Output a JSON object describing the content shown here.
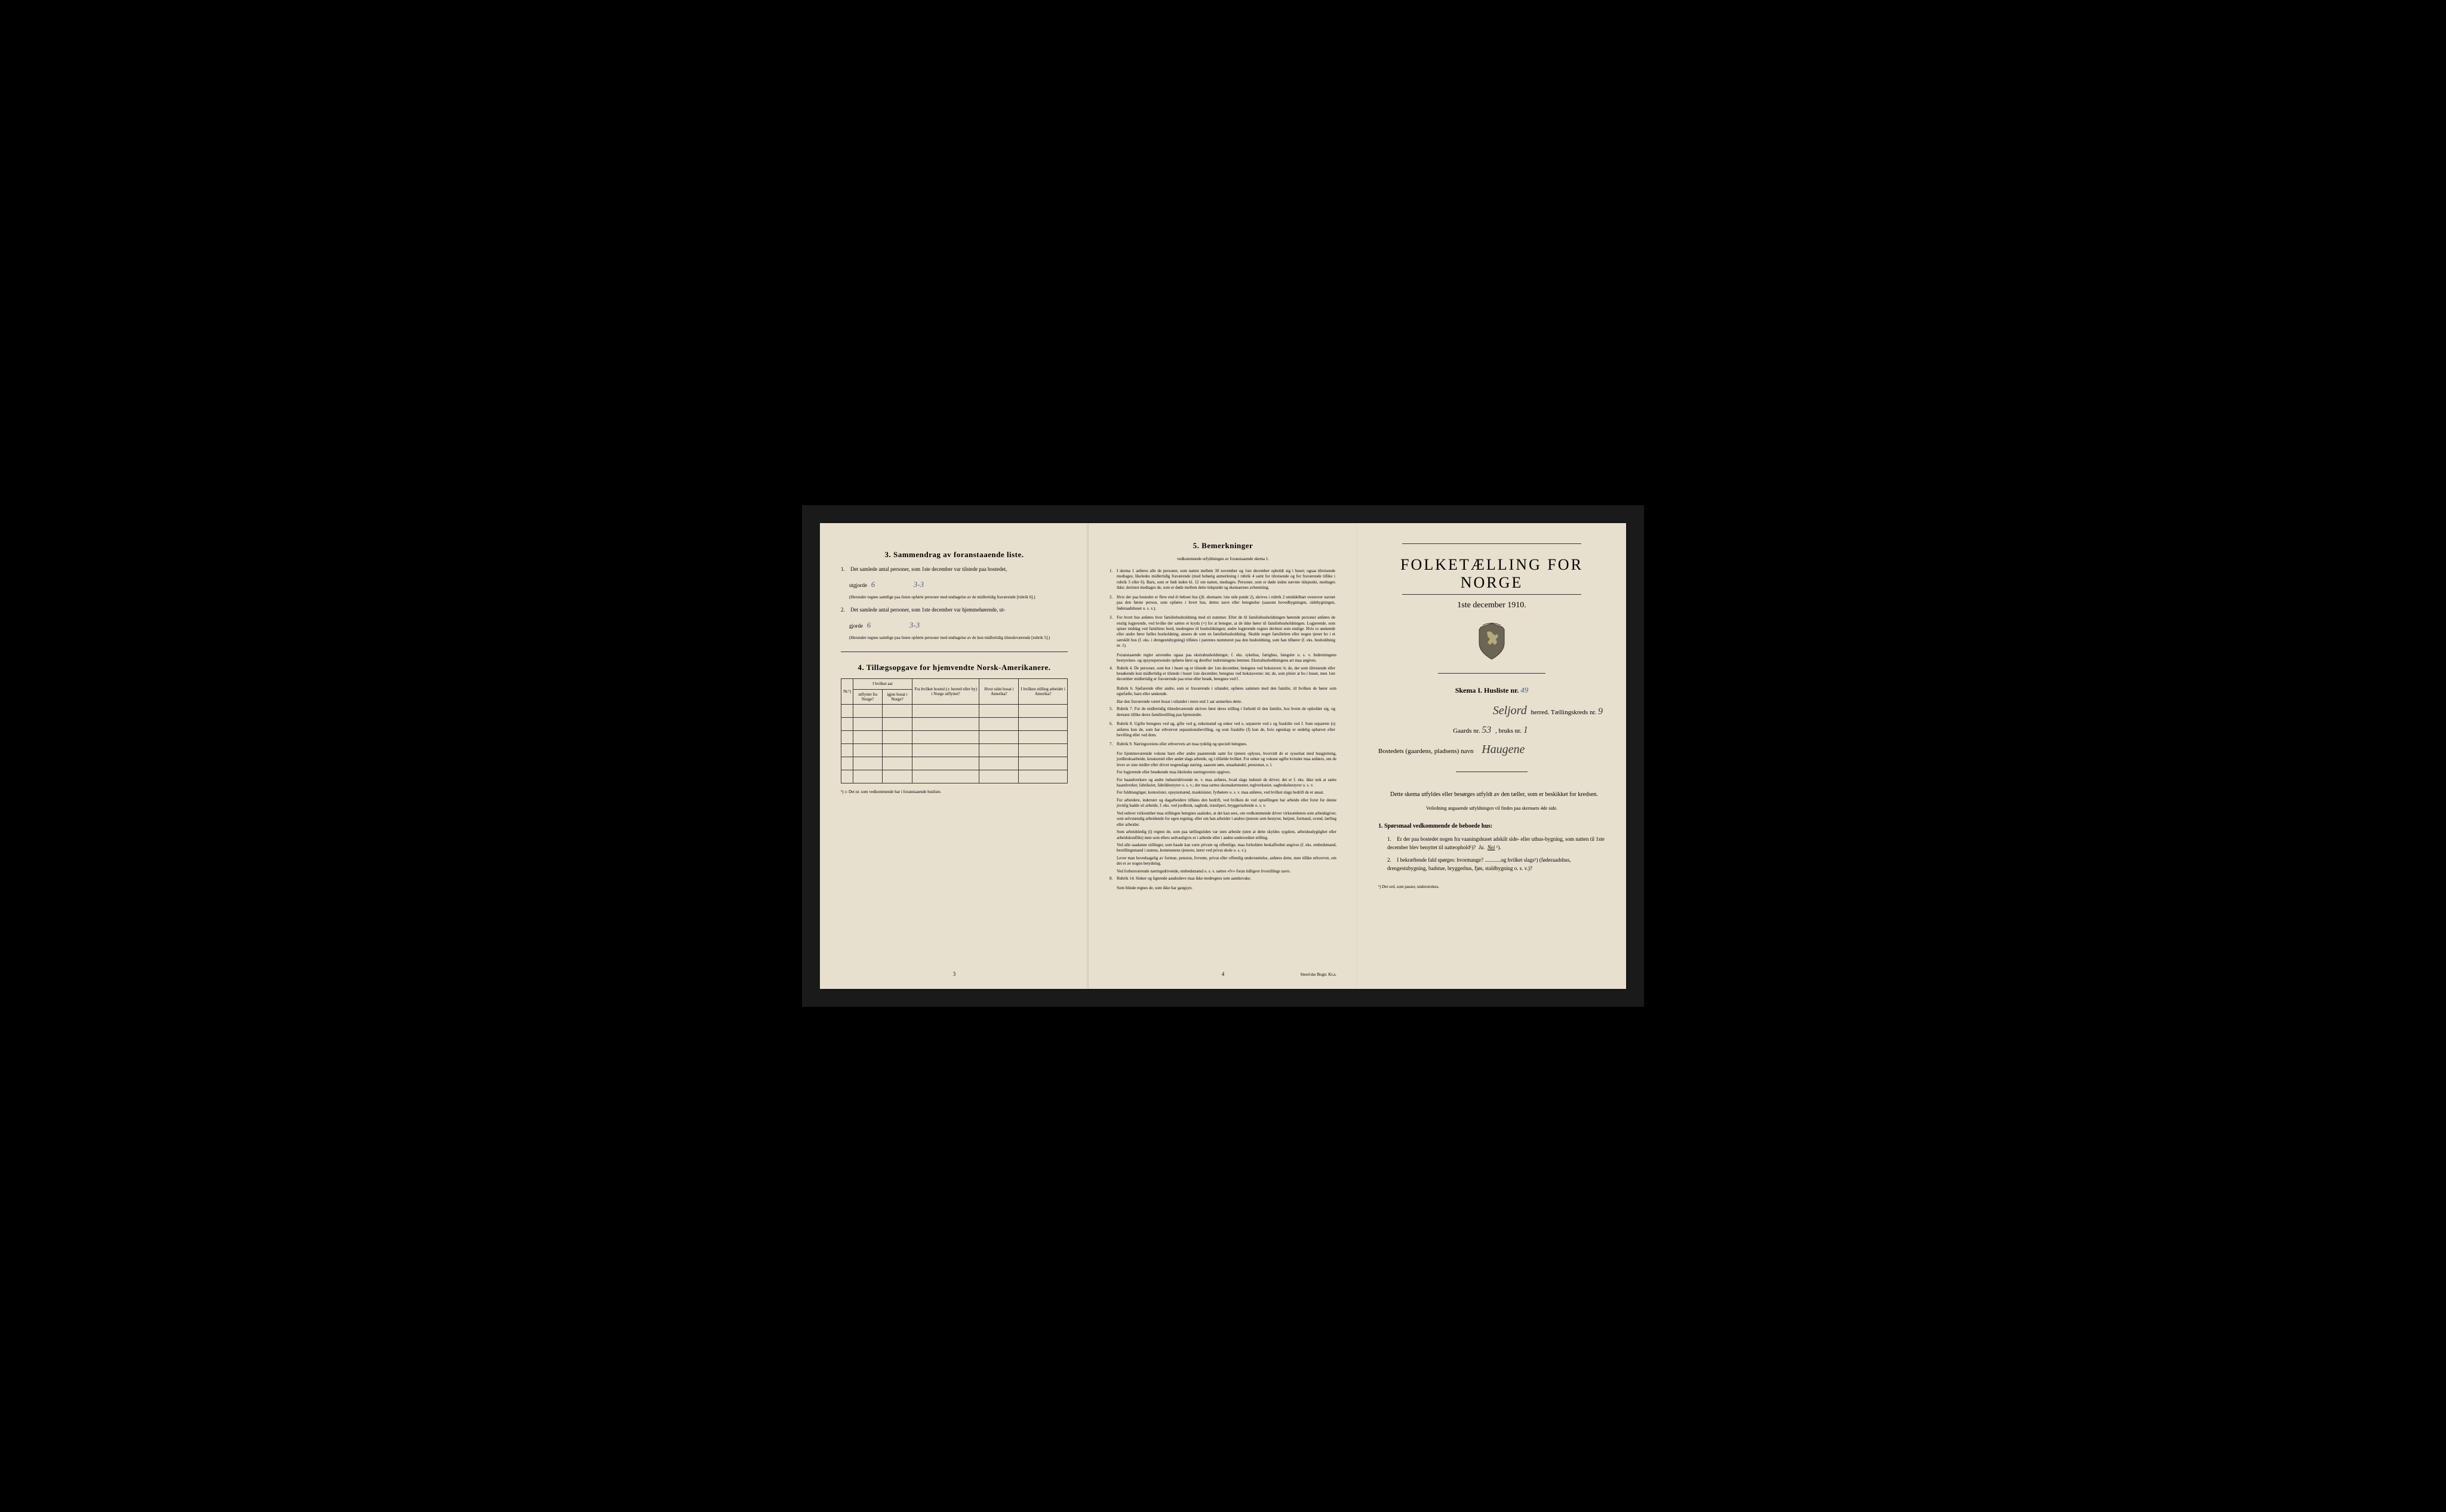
{
  "page3": {
    "section3_title": "3.  Sammendrag av foranstaaende liste.",
    "item1": "Det samlede antal personer, som 1ste december var tilstede paa bostedet,",
    "item1_line2": "utgjorde",
    "item1_val1": "6",
    "item1_val2": "3-3",
    "item1_note": "(Herunder regnes samtlige paa listen opførte personer med undtagelse av de midlertidig fraværende [rubrik 6].)",
    "item2": "Det samlede antal personer, som 1ste december var hjemmehørende, ut-",
    "item2_line2": "gjorde",
    "item2_val1": "6",
    "item2_val2": "3-3",
    "item2_note": "(Herunder regnes samtlige paa listen opførte personer med undtagelse av de kun midlertidig tilstedeværende [rubrik 5].)",
    "section4_title": "4.  Tillægsopgave for hjemvendte Norsk-Amerikanere.",
    "table_headers": {
      "col1": "Nr.¹)",
      "col2a": "I hvilket aar",
      "col2b": "utflyttet fra Norge?",
      "col2c": "igjen bosat i Norge?",
      "col3": "Fra hvilket bosted (ɔ: herred eller by) i Norge utflyttet?",
      "col4": "Hvor sidst bosat i Amerika?",
      "col5": "I hvilken stilling arbeidet i Amerika?"
    },
    "footnote": "¹) ɔ: Det nr. som vedkommende har i foranstaaende husliste.",
    "page_num": "3"
  },
  "page4": {
    "title": "5.  Bemerkninger",
    "subtitle": "vedkommende utfyldningen av foranstaaende skema 1.",
    "remarks": [
      {
        "num": "1.",
        "text": "I skema 1 anføres alle de personer, som natten mellem 30 november og 1ste december opholdt sig i huset; ogsaa tilreisende medtages; likeledes midlertidig fraværende (med behørig anmerkning i rubrik 4 samt for tilreisende og for fraværende tillike i rubrik 5 eller 6). Barn, som er født inden kl. 12 om natten, medtages. Personer, som er døde inden nævnte tidspunkt, medtages ikke; derimot medtages de, som er døde mellem dette tidspunkt og skemaernes avhentning."
      },
      {
        "num": "2.",
        "text": "Hvis der paa bostedet er flere end ét beboet hus (jfr. skemaets 1ste side punkt 2), skrives i rubrik 2 umiddelbart ovenover navnet paa den første person, som opføres i hvert hus, dettes navn eller betegnelse (saasom hovedbygningen, sidebygningen, føderaadshuset o. s. v.)."
      },
      {
        "num": "3.",
        "text": "For hvert hus anføres hver familiehusholdning med sit nummer. Efter de til familiehusholdningen hørende personer anføres de enslig logjerende, ved hvilke der sættes et kryds (×) for at betegne, at de ikke hører til familiehusholdningen. Logjerende, som spiser middag ved familiens bord, medregnes til husholdningen; andre logjerende regnes derimot som enslige. Hvis to søskende eller andre fører fælles husholdning, ansees de som en familiehusholdning. Skulde noget familielem eller nogen tjener bo i et særskilt hus (f. eks. i drengestubygning) tilføies i parentes nummeret paa den husholdning, som han tilhører (f. eks. husholdning nr. 1).",
        "subs": [
          "Foranstaaende regler anvendes ogsaa paa ekstrahusholdninger, f. eks. sykehus, fattighus, fængsler o. s. v. Indretningens bestyrelses- og opsynspersonale opføres først og derefter indretningens lemmer. Ekstrahusholdningens art maa angives."
        ]
      },
      {
        "num": "4.",
        "text": "Rubrik 4. De personer, som bor i huset og er tilstede der 1ste december, betegnes ved bokstaven: b; de, der som tilreisende eller besøkende kun midlertidig er tilstede i huset 1ste december, betegnes ved bokstaverne: mt; de, som pleier at bo i huset, men 1ste december midlertidig er fraværende paa reise eller besøk, betegnes ved f.",
        "subs": [
          "Rubrik 6. Sjøfarende eller andre, som er fraværende i utlandet, opføres sammen med den familie, til hvilken de hører som egtefælle, barn eller søskende.",
          "Har den fraværende været bosat i utlandet i mere end 1 aar anmerkes dette."
        ]
      },
      {
        "num": "5.",
        "text": "Rubrik 7. For de midlertidig tilstedeværende skrives først deres stilling i forhold til den familie, hos hvem de opholder sig, og dernæst tillike deres familiestilling paa hjemstedet."
      },
      {
        "num": "6.",
        "text": "Rubrik 8. Ugifte betegnes ved ug, gifte ved g, enkemænd og enker ved e, separerte ved s og fraskilte ved f. Som separerte (s) anføres kun de, som har erhvervet separationsbevilling, og som fraskilte (f) kun de, hvis egteskap er endelig ophævet efter bevilling eller ved dom."
      },
      {
        "num": "7.",
        "text": "Rubrik 9. Næringsveiens eller erhvervets art maa tydelig og specielt betegnes.",
        "subs": [
          "For hjemmeværende voksne barn eller andre paarørende samt for tjenere oplyses, hvorvidt de er sysselsat med husgjerning, jordbruksarbeide, kreaturstel eller andet slags arbeide, og i tilfælde hvilket. For enker og voksne ugifte kvinder maa anføres, om de lever av sine midler eller driver nogenslags næring, saasom søm, smaahandel, pensionat, o. l.",
          "For logjerende eller besøkende maa likeledes næringsveien opgives.",
          "For haandverkere og andre industridrivende m. v. maa anføres, hvad slags industri de driver; det er f. eks. ikke nok at sætte haandverker, fabrikeier, fabrikbestyrer o. s. v.; der maa sættes skomakermester, teglverkseier, sagbruksbestyrer o. s. v.",
          "For fuldmægtiger, kontorister, opsynsmænd, maskinister, fyrbøtere o. s. v. maa anføres, ved hvilket slags bedrift de er ansat.",
          "For arbeidere, inderster og dagarbeidere tilføies den bedrift, ved hvilken de ved optællingen har arbeide eller forut for denne jevnlig hadde sit arbeide, f. eks. ved jordbruk, sagbruk, træsliperi, bryggeriarbeide o. s. v.",
          "Ved enhver virksomhet maa stillingen betegnes saaledes, at det kan sees, om vedkommende driver virksomheten som arbeidsgiver, som selvstændig arbeidende for egen regning, eller om han arbeider i andres tjeneste som bestyrer, betjent, formand, svend, lærling eller arbeider.",
          "Som arbeidsledig (l) regnes de, som paa tællingstiden var uten arbeide (uten at dette skyldes sygdom, arbeidsudygtighet eller arbeidskonflikt) men som ellers sedvanligvis er i arbeide eller i anden underordnet stilling.",
          "Ved alle saadanne stillinger, som baade kan være private og offentlige, maa forholdets beskaffenhet angives (f. eks. embedsmand, bestillingsmand i statens, kommunens tjeneste, lærer ved privat skole o. s. v.).",
          "Lever man hovedsagelig av formue, pension, livrente, privat eller offentlig understøttelse, anføres dette, men tillike erhvervet, om det er av nogen betydning.",
          "Ved forhenværende næringsdrivende, embedsmænd o. s. v. sættes «fv» foran tidligere livsstillings navn."
        ]
      },
      {
        "num": "8.",
        "text": "Rubrik 14. Sinker og lignende aandssløve maa ikke medregnes som aandssvake.",
        "subs": [
          "Som blinde regnes de, som ikke har gangsyn."
        ]
      }
    ],
    "page_num": "4",
    "printer": "Steen'ske Bogtr. Kr.a."
  },
  "page_right": {
    "main_title": "FOLKETÆLLING FOR NORGE",
    "date": "1ste december 1910.",
    "skema": "Skema I.  Husliste nr.",
    "husliste_nr": "49",
    "herred_name": "Seljord",
    "herred_label": "herred.  Tællingskreds nr.",
    "kreds_nr": "9",
    "gaards_label": "Gaards nr.",
    "gaards_nr": "53",
    "bruks_label": ", bruks nr.",
    "bruks_nr": "1",
    "bosted_label": "Bostedets (gaardens, pladsens) navn",
    "bosted_name": "Haugene",
    "body1": "Dette skema utfyldes eller besørges utfyldt av den tæller, som er beskikket for kredsen.",
    "body2": "Veiledning angaaende utfyldningen vil findes paa skemaets 4de side.",
    "q_head": "1. Spørsmaal vedkommende de beboede hus:",
    "q1": "Er der paa bostedet nogen fra vaaningshuset adskilt side- eller uthus-bygning, som natten til 1ste december blev benyttet til natteophold¹)?",
    "q1_ja": "Ja.",
    "q1_nei": "Nei",
    "q1_sup": "¹).",
    "q2": "I bekræftende fald spørges: hvormange? ............og hvilket slags¹) (føderaadshus, drengestubygning, badstue, bryggerhus, fjøs, staldbygning o. s. v.)?",
    "foot": "¹) Det ord, som passer, understrekes."
  }
}
